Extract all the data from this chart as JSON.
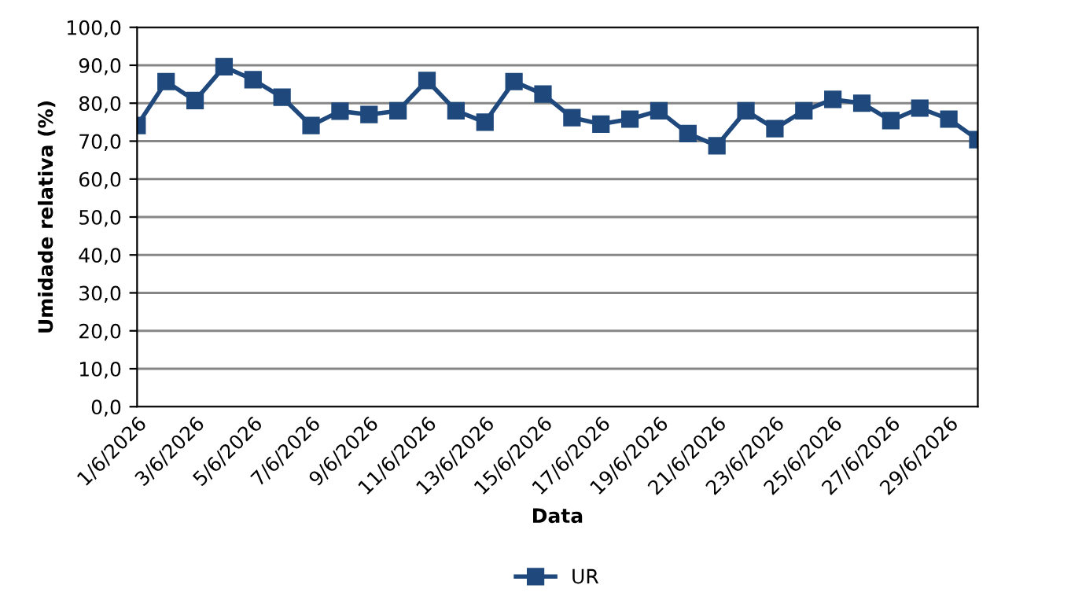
{
  "chart_data": {
    "type": "line",
    "xlabel": "Data",
    "ylabel": "Umidade relativa (%)",
    "categories": [
      "1/6/2026",
      null,
      "3/6/2026",
      null,
      "5/6/2026",
      null,
      "7/6/2026",
      null,
      "9/6/2026",
      null,
      "11/6/2026",
      null,
      "13/6/2026",
      null,
      "15/6/2026",
      null,
      "17/6/2026",
      null,
      "19/6/2026",
      null,
      "21/6/2026",
      null,
      "23/6/2026",
      null,
      "25/6/2026",
      null,
      "27/6/2026",
      null,
      "29/6/2026",
      null
    ],
    "series": [
      {
        "name": "UR",
        "color": "#1f497d",
        "values": [
          74.1,
          85.7,
          80.7,
          89.6,
          86.2,
          81.6,
          74.1,
          77.9,
          77.0,
          78.0,
          86.0,
          78.0,
          75.0,
          85.7,
          82.4,
          76.2,
          74.5,
          75.8,
          78.0,
          72.0,
          68.8,
          78.0,
          73.3,
          78.0,
          81.0,
          80.0,
          75.4,
          78.7,
          75.8,
          70.4
        ]
      }
    ],
    "ylim": [
      0,
      100
    ],
    "yticks": [
      {
        "value": 0,
        "label": "0,0"
      },
      {
        "value": 10,
        "label": "10,0"
      },
      {
        "value": 20,
        "label": "20,0"
      },
      {
        "value": 30,
        "label": "30,0"
      },
      {
        "value": 40,
        "label": "40,0"
      },
      {
        "value": 50,
        "label": "50,0"
      },
      {
        "value": 60,
        "label": "60,0"
      },
      {
        "value": 70,
        "label": "70,0"
      },
      {
        "value": 80,
        "label": "80,0"
      },
      {
        "value": 90,
        "label": "90,0"
      },
      {
        "value": 100,
        "label": "100,0"
      }
    ],
    "grid": "y",
    "legend": "bottom",
    "marker": "square",
    "line_style": "solid"
  }
}
